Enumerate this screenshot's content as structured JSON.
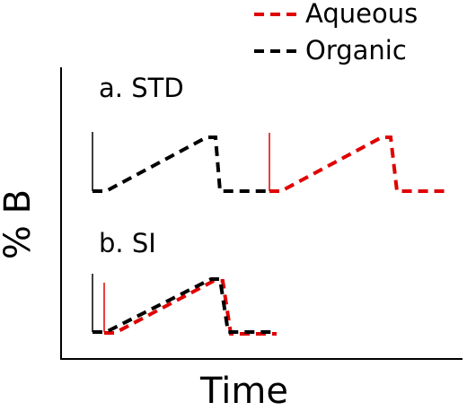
{
  "legend": {
    "items": [
      "Aqueous",
      "Organic"
    ]
  },
  "panels": [
    "a. STD",
    "b. SI"
  ],
  "axes": {
    "y_label": "% B",
    "x_label": "Time"
  }
}
